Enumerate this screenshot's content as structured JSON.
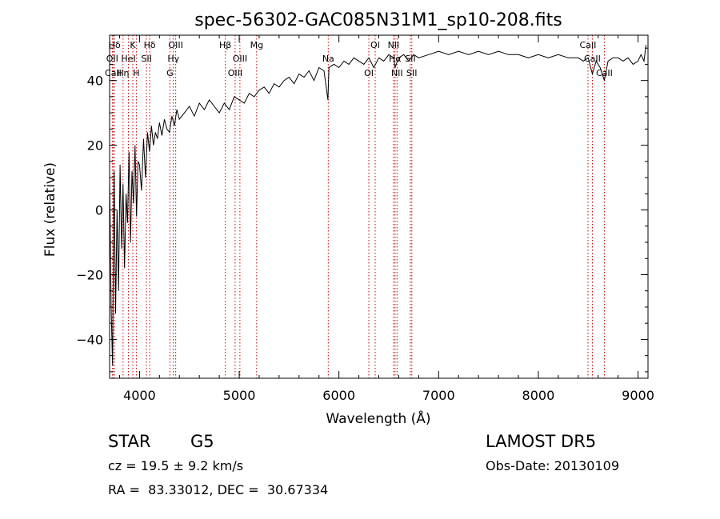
{
  "chart_data": {
    "type": "line",
    "title": "spec-56302-GAC085N31M1_sp10-208.fits",
    "xlabel": "Wavelength (Å)",
    "ylabel": "Flux (relative)",
    "xlim": [
      3700,
      9100
    ],
    "ylim": [
      -52,
      54
    ],
    "xticks": [
      4000,
      5000,
      6000,
      7000,
      8000,
      9000
    ],
    "yticks": [
      -40,
      -20,
      0,
      20,
      40
    ],
    "grid": false,
    "line_color": "#000000",
    "marker_color": "#cc0000",
    "series": [
      {
        "x": [
          3700,
          3715,
          3730,
          3745,
          3760,
          3775,
          3790,
          3805,
          3820,
          3835,
          3850,
          3865,
          3880,
          3895,
          3910,
          3925,
          3940,
          3955,
          3970,
          3985,
          4000,
          4020,
          4040,
          4060,
          4080,
          4100,
          4120,
          4140,
          4160,
          4180,
          4200,
          4225,
          4250,
          4275,
          4300,
          4325,
          4350,
          4375,
          4400,
          4450,
          4500,
          4550,
          4600,
          4650,
          4700,
          4750,
          4800,
          4850,
          4900,
          4950,
          5000,
          5050,
          5100,
          5150,
          5200,
          5250,
          5300,
          5350,
          5400,
          5450,
          5500,
          5550,
          5600,
          5650,
          5700,
          5750,
          5800,
          5850,
          5890,
          5900,
          5950,
          6000,
          6050,
          6100,
          6150,
          6200,
          6250,
          6300,
          6350,
          6400,
          6450,
          6500,
          6550,
          6563,
          6600,
          6650,
          6700,
          6750,
          6800,
          6900,
          7000,
          7100,
          7200,
          7300,
          7400,
          7500,
          7600,
          7700,
          7800,
          7900,
          8000,
          8100,
          8200,
          8300,
          8400,
          8450,
          8500,
          8542,
          8580,
          8620,
          8662,
          8700,
          8750,
          8800,
          8850,
          8900,
          8950,
          9000,
          9030,
          9060,
          9080
        ],
        "y": [
          10,
          -30,
          -48,
          12,
          -32,
          0,
          -25,
          14,
          -12,
          8,
          -18,
          5,
          -4,
          18,
          -10,
          12,
          2,
          20,
          -2,
          15,
          14,
          6,
          22,
          10,
          24,
          18,
          26,
          20,
          24,
          22,
          27,
          23,
          28,
          25,
          24,
          29,
          26,
          31,
          28,
          30,
          32,
          29,
          33,
          31,
          34,
          32,
          30,
          33,
          31,
          35,
          34,
          33,
          36,
          35,
          37,
          38,
          36,
          39,
          38,
          40,
          41,
          39,
          42,
          41,
          43,
          40,
          44,
          43,
          34,
          44,
          45,
          44,
          46,
          45,
          47,
          46,
          45,
          47,
          44,
          47,
          46,
          48,
          47,
          44,
          47,
          48,
          46,
          48,
          47,
          48,
          49,
          48,
          49,
          48,
          49,
          48,
          49,
          48,
          48,
          47,
          48,
          47,
          48,
          47,
          47,
          46,
          47,
          42,
          46,
          44,
          40,
          46,
          47,
          47,
          46,
          47,
          45,
          46,
          48,
          46,
          51
        ]
      }
    ],
    "lines": [
      {
        "label": "Hδ",
        "x": 3750
      },
      {
        "label": "OII",
        "x": 3727
      },
      {
        "label": "CaII",
        "x": 3736
      },
      {
        "label": "K",
        "x": 3933
      },
      {
        "label": "HeI",
        "x": 3889
      },
      {
        "label": "Hη",
        "x": 3835
      },
      {
        "label": "Hδ",
        "x": 4102
      },
      {
        "label": "SII",
        "x": 4070
      },
      {
        "label": "H",
        "x": 3968
      },
      {
        "label": "OIII",
        "x": 4363
      },
      {
        "label": "Hγ",
        "x": 4340
      },
      {
        "label": "G",
        "x": 4305
      },
      {
        "label": "Hβ",
        "x": 4861
      },
      {
        "label": "OIII",
        "x": 5007
      },
      {
        "label": "OIII",
        "x": 4959
      },
      {
        "label": "Mg",
        "x": 5175
      },
      {
        "label": "Na",
        "x": 5893
      },
      {
        "label": "OI",
        "x": 6300
      },
      {
        "label": "OI",
        "x": 6364
      },
      {
        "label": "Hα",
        "x": 6563
      },
      {
        "label": "NII",
        "x": 6583
      },
      {
        "label": "NII",
        "x": 6548
      },
      {
        "label": "SII",
        "x": 6716
      },
      {
        "label": "SII",
        "x": 6731
      },
      {
        "label": "CaII",
        "x": 8498
      },
      {
        "label": "CaII",
        "x": 8542
      },
      {
        "label": "CaII",
        "x": 8662
      }
    ]
  },
  "info": {
    "class": "STAR",
    "subclass": "G5",
    "release": "LAMOST DR5",
    "cz": "cz = 19.5 ± 9.2 km/s",
    "obs_date": "Obs-Date: 20130109",
    "coords": "RA =  83.33012, DEC =  30.67334"
  }
}
